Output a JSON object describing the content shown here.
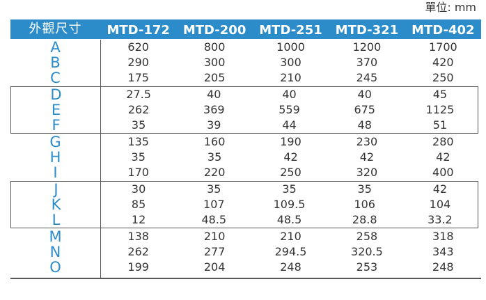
{
  "unit_label": "單位: mm",
  "header": {
    "label": "外觀尺寸",
    "models": [
      "MTD-172",
      "MTD-200",
      "MTD-251",
      "MTD-321",
      "MTD-402"
    ]
  },
  "groups": [
    {
      "boxed": false,
      "rows": [
        {
          "key": "A",
          "values": [
            "620",
            "800",
            "1000",
            "1200",
            "1700"
          ]
        },
        {
          "key": "B",
          "values": [
            "290",
            "300",
            "300",
            "370",
            "420"
          ]
        },
        {
          "key": "C",
          "values": [
            "175",
            "205",
            "210",
            "245",
            "250"
          ]
        }
      ]
    },
    {
      "boxed": true,
      "rows": [
        {
          "key": "D",
          "values": [
            "27.5",
            "40",
            "40",
            "40",
            "45"
          ]
        },
        {
          "key": "E",
          "values": [
            "262",
            "369",
            "559",
            "675",
            "1125"
          ]
        },
        {
          "key": "F",
          "values": [
            "35",
            "39",
            "44",
            "48",
            "51"
          ]
        }
      ]
    },
    {
      "boxed": false,
      "rows": [
        {
          "key": "G",
          "values": [
            "135",
            "160",
            "190",
            "230",
            "280"
          ]
        },
        {
          "key": "H",
          "values": [
            "35",
            "35",
            "42",
            "42",
            "42"
          ]
        },
        {
          "key": "I",
          "values": [
            "170",
            "220",
            "250",
            "320",
            "400"
          ]
        }
      ]
    },
    {
      "boxed": true,
      "rows": [
        {
          "key": "J",
          "values": [
            "30",
            "35",
            "35",
            "35",
            "42"
          ]
        },
        {
          "key": "K",
          "values": [
            "85",
            "107",
            "109.5",
            "106",
            "104"
          ]
        },
        {
          "key": "L",
          "values": [
            "12",
            "48.5",
            "48.5",
            "28.8",
            "33.2"
          ]
        }
      ]
    },
    {
      "boxed": false,
      "rows": [
        {
          "key": "M",
          "values": [
            "138",
            "210",
            "210",
            "258",
            "318"
          ]
        },
        {
          "key": "N",
          "values": [
            "262",
            "277",
            "294.5",
            "320.5",
            "343"
          ]
        },
        {
          "key": "O",
          "values": [
            "199",
            "204",
            "248",
            "253",
            "248"
          ]
        }
      ]
    }
  ]
}
